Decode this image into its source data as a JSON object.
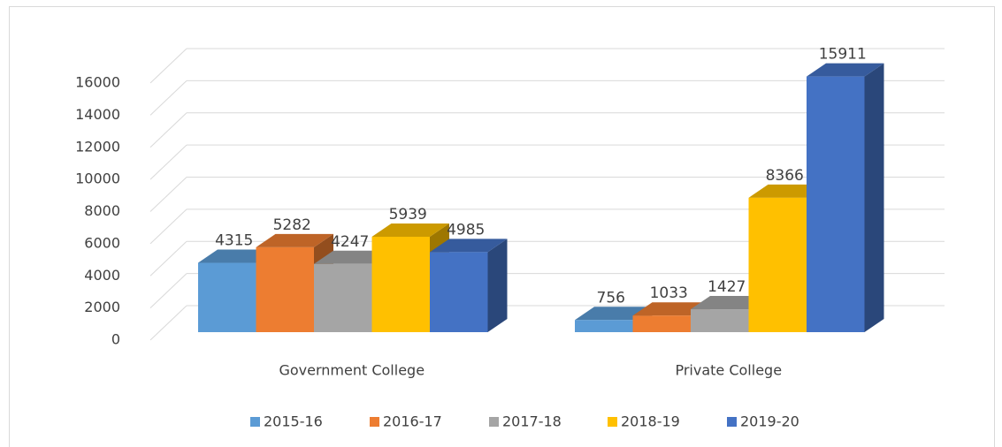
{
  "chart_data": {
    "type": "bar3d",
    "categories": [
      "Government College",
      "Private College"
    ],
    "series": [
      {
        "name": "2015-16",
        "color": "#5b9bd5",
        "values": [
          4315,
          756
        ]
      },
      {
        "name": "2016-17",
        "color": "#ed7d31",
        "values": [
          5282,
          1033
        ]
      },
      {
        "name": "2017-18",
        "color": "#a5a5a5",
        "values": [
          4247,
          1427
        ]
      },
      {
        "name": "2018-19",
        "color": "#ffc000",
        "values": [
          5939,
          8366
        ]
      },
      {
        "name": "2019-20",
        "color": "#4472c4",
        "values": [
          4985,
          15911
        ]
      }
    ],
    "ylim": [
      0,
      16000
    ],
    "yticks": [
      0,
      2000,
      4000,
      6000,
      8000,
      10000,
      12000,
      14000,
      16000
    ],
    "grid": true,
    "legend": "bottom"
  }
}
